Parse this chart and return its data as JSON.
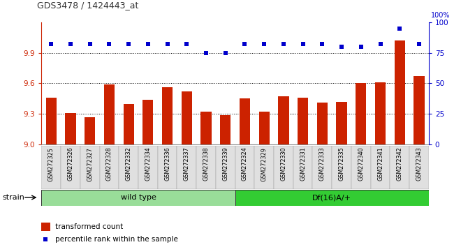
{
  "title": "GDS3478 / 1424443_at",
  "samples": [
    "GSM272325",
    "GSM272326",
    "GSM272327",
    "GSM272328",
    "GSM272332",
    "GSM272334",
    "GSM272336",
    "GSM272337",
    "GSM272338",
    "GSM272339",
    "GSM272324",
    "GSM272329",
    "GSM272330",
    "GSM272331",
    "GSM272333",
    "GSM272335",
    "GSM272340",
    "GSM272341",
    "GSM272342",
    "GSM272343"
  ],
  "bar_values": [
    9.46,
    9.31,
    9.27,
    9.59,
    9.4,
    9.44,
    9.56,
    9.52,
    9.32,
    9.29,
    9.45,
    9.32,
    9.47,
    9.46,
    9.41,
    9.42,
    9.6,
    9.61,
    10.02,
    9.67
  ],
  "dot_values": [
    82,
    82,
    82,
    82,
    82,
    82,
    82,
    82,
    75,
    75,
    82,
    82,
    82,
    82,
    82,
    80,
    80,
    82,
    95,
    82
  ],
  "groups": [
    {
      "label": "wild type",
      "start": 0,
      "end": 10,
      "color": "#99dd99"
    },
    {
      "label": "Df(16)A/+",
      "start": 10,
      "end": 20,
      "color": "#33cc33"
    }
  ],
  "ylim_left": [
    9.0,
    10.2
  ],
  "ylim_right": [
    0,
    100
  ],
  "yticks_left": [
    9.0,
    9.3,
    9.6,
    9.9
  ],
  "yticks_right": [
    0,
    25,
    50,
    75,
    100
  ],
  "bar_color": "#cc2200",
  "dot_color": "#0000cc",
  "grid_lines": [
    9.3,
    9.6,
    9.9
  ],
  "strain_label": "strain",
  "legend_bar_label": "transformed count",
  "legend_dot_label": "percentile rank within the sample",
  "left_axis_color": "#cc2200",
  "right_axis_color": "#0000cc",
  "title_color": "#333333"
}
